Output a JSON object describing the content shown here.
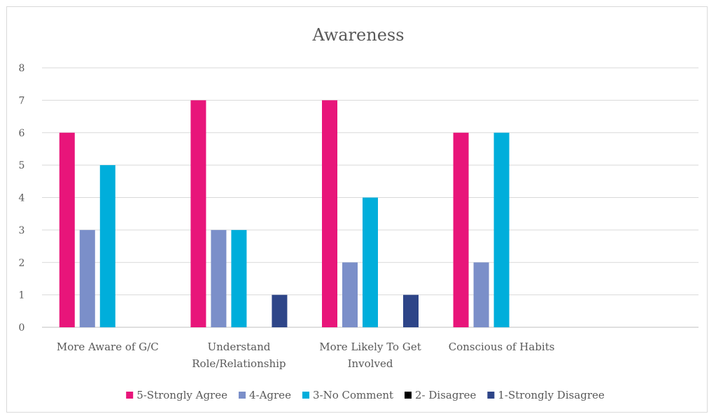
{
  "chart_data": {
    "type": "bar",
    "title": "Awareness",
    "xlabel": "",
    "ylabel": "",
    "ylim": [
      0,
      8
    ],
    "yticks": [
      0,
      1,
      2,
      3,
      4,
      5,
      6,
      7,
      8
    ],
    "grid": true,
    "legend_position": "bottom",
    "categories": [
      [
        "More Aware of G/C"
      ],
      [
        "Understand",
        "Role/Relationship"
      ],
      [
        "More Likely To Get",
        "Involved"
      ],
      [
        "Conscious of Habits"
      ],
      [
        ""
      ]
    ],
    "series": [
      {
        "name": "5-Strongly Agree",
        "color": "#E8157A",
        "values": [
          6,
          7,
          7,
          6,
          0
        ]
      },
      {
        "name": "4-Agree",
        "color": "#7B8FC9",
        "values": [
          3,
          3,
          2,
          2,
          0
        ]
      },
      {
        "name": "3-No Comment",
        "color": "#00AEDB",
        "values": [
          5,
          3,
          4,
          6,
          0
        ]
      },
      {
        "name": "2- Disagree",
        "color": "#000000",
        "values": [
          0,
          0,
          0,
          0,
          0
        ]
      },
      {
        "name": "1-Strongly Disagree",
        "color": "#2E4588",
        "values": [
          0,
          1,
          1,
          0,
          0
        ]
      }
    ]
  }
}
